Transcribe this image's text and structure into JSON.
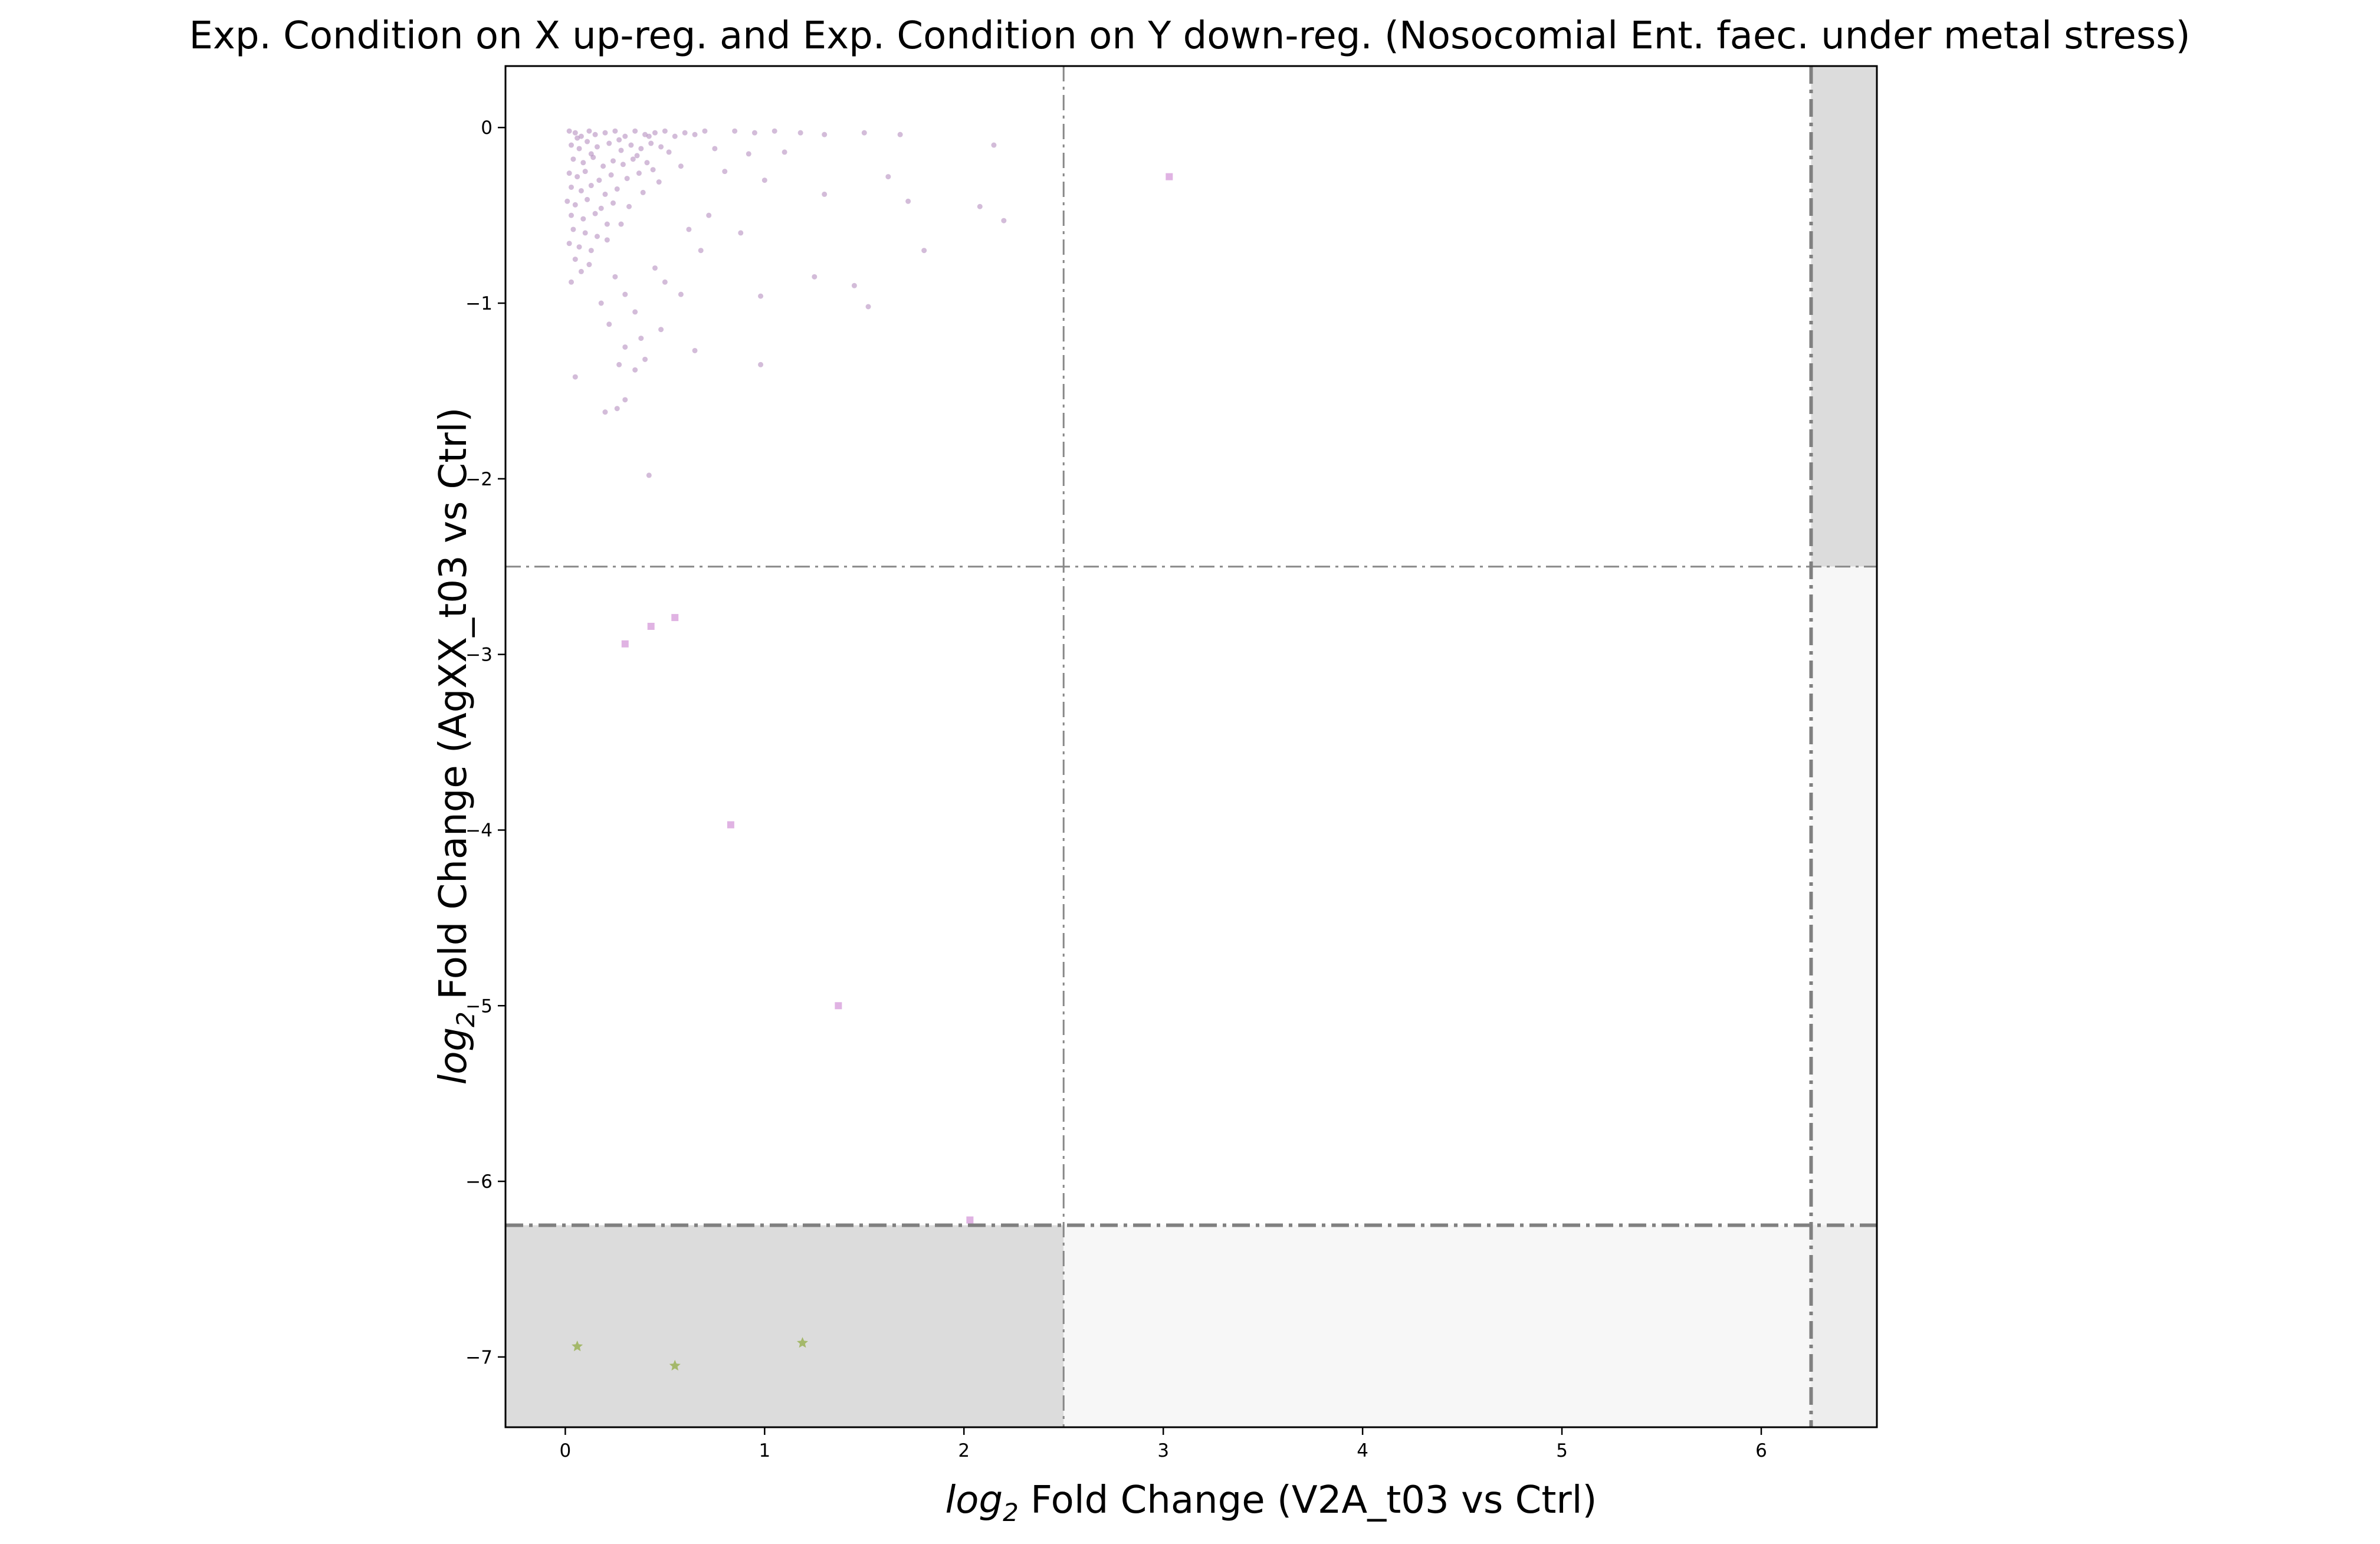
{
  "chart_data": {
    "type": "scatter",
    "title": "Exp. Condition on X up-reg. and Exp. Condition on Y down-reg. (Nosocomial Ent. faec. under metal stress)",
    "xlabel": {
      "prefix": "log",
      "sub": "2",
      "rest": " Fold Change (V2A_t03 vs Ctrl)"
    },
    "ylabel": {
      "prefix": "log",
      "sub": "2",
      "rest": " Fold Change (AgXX_t03 vs Ctrl)"
    },
    "xlim": [
      -0.3,
      6.58
    ],
    "ylim": [
      -7.4,
      0.35
    ],
    "xticks": [
      0,
      1,
      2,
      3,
      4,
      5,
      6
    ],
    "yticks": [
      0,
      -1,
      -2,
      -3,
      -4,
      -5,
      -6,
      -7
    ],
    "xtick_labels": [
      "0",
      "1",
      "2",
      "3",
      "4",
      "5",
      "6"
    ],
    "ytick_labels": [
      "0",
      "−1",
      "−2",
      "−3",
      "−4",
      "−5",
      "−6",
      "−7"
    ],
    "grid": false,
    "thresholds": {
      "x_inner": 2.5,
      "x_outer": 6.25,
      "y_inner": -2.5,
      "y_outer": -6.25
    },
    "shaded_regions": [
      {
        "x": [
          -0.3,
          2.5
        ],
        "y": [
          -7.4,
          -6.25
        ],
        "color": "#dcdcdc"
      },
      {
        "x": [
          6.25,
          6.58
        ],
        "y": [
          -2.5,
          0.35
        ],
        "color": "#dcdcdc"
      },
      {
        "x": [
          6.25,
          6.58
        ],
        "y": [
          -7.4,
          -6.25
        ],
        "color": "#ededed"
      },
      {
        "x": [
          2.5,
          6.25
        ],
        "y": [
          -7.4,
          -6.25
        ],
        "color": "#f7f7f7"
      },
      {
        "x": [
          6.25,
          6.58
        ],
        "y": [
          -6.25,
          -2.5
        ],
        "color": "#f7f7f7"
      }
    ],
    "series": [
      {
        "marker": "dot",
        "color": "#b58fc0",
        "points": [
          [
            0.02,
            -0.02
          ],
          [
            0.05,
            -0.03
          ],
          [
            0.08,
            -0.05
          ],
          [
            0.12,
            -0.02
          ],
          [
            0.15,
            -0.04
          ],
          [
            0.2,
            -0.03
          ],
          [
            0.25,
            -0.02
          ],
          [
            0.3,
            -0.05
          ],
          [
            0.35,
            -0.02
          ],
          [
            0.4,
            -0.04
          ],
          [
            0.45,
            -0.03
          ],
          [
            0.5,
            -0.02
          ],
          [
            0.55,
            -0.05
          ],
          [
            0.6,
            -0.03
          ],
          [
            0.65,
            -0.04
          ],
          [
            0.7,
            -0.02
          ],
          [
            0.03,
            -0.1
          ],
          [
            0.07,
            -0.12
          ],
          [
            0.11,
            -0.08
          ],
          [
            0.16,
            -0.11
          ],
          [
            0.22,
            -0.09
          ],
          [
            0.28,
            -0.13
          ],
          [
            0.33,
            -0.1
          ],
          [
            0.38,
            -0.12
          ],
          [
            0.43,
            -0.09
          ],
          [
            0.48,
            -0.11
          ],
          [
            0.04,
            -0.18
          ],
          [
            0.09,
            -0.2
          ],
          [
            0.14,
            -0.17
          ],
          [
            0.19,
            -0.22
          ],
          [
            0.24,
            -0.19
          ],
          [
            0.29,
            -0.21
          ],
          [
            0.34,
            -0.18
          ],
          [
            0.41,
            -0.2
          ],
          [
            0.02,
            -0.26
          ],
          [
            0.06,
            -0.28
          ],
          [
            0.1,
            -0.25
          ],
          [
            0.17,
            -0.3
          ],
          [
            0.23,
            -0.27
          ],
          [
            0.31,
            -0.29
          ],
          [
            0.37,
            -0.26
          ],
          [
            0.03,
            -0.34
          ],
          [
            0.08,
            -0.36
          ],
          [
            0.13,
            -0.33
          ],
          [
            0.2,
            -0.38
          ],
          [
            0.26,
            -0.35
          ],
          [
            0.01,
            -0.42
          ],
          [
            0.05,
            -0.44
          ],
          [
            0.11,
            -0.41
          ],
          [
            0.18,
            -0.46
          ],
          [
            0.24,
            -0.43
          ],
          [
            0.03,
            -0.5
          ],
          [
            0.09,
            -0.52
          ],
          [
            0.15,
            -0.49
          ],
          [
            0.21,
            -0.55
          ],
          [
            0.04,
            -0.58
          ],
          [
            0.1,
            -0.6
          ],
          [
            0.16,
            -0.62
          ],
          [
            0.02,
            -0.66
          ],
          [
            0.07,
            -0.68
          ],
          [
            0.13,
            -0.7
          ],
          [
            0.05,
            -0.75
          ],
          [
            0.12,
            -0.78
          ],
          [
            0.03,
            -0.88
          ],
          [
            0.08,
            -0.82
          ],
          [
            0.06,
            -0.06
          ],
          [
            0.13,
            -0.15
          ],
          [
            0.27,
            -0.07
          ],
          [
            0.36,
            -0.16
          ],
          [
            0.44,
            -0.24
          ],
          [
            0.52,
            -0.14
          ],
          [
            0.58,
            -0.22
          ],
          [
            0.47,
            -0.31
          ],
          [
            0.39,
            -0.37
          ],
          [
            0.32,
            -0.45
          ],
          [
            0.21,
            -0.64
          ],
          [
            0.28,
            -0.55
          ],
          [
            0.85,
            -0.02
          ],
          [
            0.95,
            -0.03
          ],
          [
            1.05,
            -0.02
          ],
          [
            1.18,
            -0.03
          ],
          [
            1.3,
            -0.04
          ],
          [
            1.5,
            -0.03
          ],
          [
            1.68,
            -0.04
          ],
          [
            2.15,
            -0.1
          ],
          [
            0.75,
            -0.12
          ],
          [
            0.92,
            -0.15
          ],
          [
            1.1,
            -0.14
          ],
          [
            0.8,
            -0.25
          ],
          [
            1.0,
            -0.3
          ],
          [
            1.3,
            -0.38
          ],
          [
            1.62,
            -0.28
          ],
          [
            1.72,
            -0.42
          ],
          [
            2.08,
            -0.45
          ],
          [
            2.2,
            -0.53
          ],
          [
            0.72,
            -0.5
          ],
          [
            0.88,
            -0.6
          ],
          [
            0.62,
            -0.58
          ],
          [
            0.68,
            -0.7
          ],
          [
            1.25,
            -0.85
          ],
          [
            1.45,
            -0.9
          ],
          [
            1.8,
            -0.7
          ],
          [
            1.52,
            -1.02
          ],
          [
            0.98,
            -0.96
          ],
          [
            0.45,
            -0.8
          ],
          [
            0.5,
            -0.88
          ],
          [
            0.25,
            -0.85
          ],
          [
            0.3,
            -0.95
          ],
          [
            0.18,
            -1.0
          ],
          [
            0.22,
            -1.12
          ],
          [
            0.35,
            -1.05
          ],
          [
            0.48,
            -1.15
          ],
          [
            0.38,
            -1.2
          ],
          [
            0.3,
            -1.25
          ],
          [
            0.65,
            -1.27
          ],
          [
            0.4,
            -1.32
          ],
          [
            0.27,
            -1.35
          ],
          [
            0.35,
            -1.38
          ],
          [
            0.05,
            -1.42
          ],
          [
            0.98,
            -1.35
          ],
          [
            0.2,
            -1.62
          ],
          [
            0.26,
            -1.6
          ],
          [
            0.3,
            -1.55
          ],
          [
            0.42,
            -1.98
          ],
          [
            0.58,
            -0.95
          ],
          [
            0.42,
            -0.05
          ]
        ]
      },
      {
        "marker": "square",
        "color": "#e0b3e3",
        "points": [
          [
            3.03,
            -0.28
          ],
          [
            0.3,
            -2.94
          ],
          [
            0.43,
            -2.84
          ],
          [
            0.55,
            -2.79
          ],
          [
            0.83,
            -3.97
          ],
          [
            1.37,
            -5.0
          ],
          [
            2.03,
            -6.22
          ]
        ]
      },
      {
        "marker": "star",
        "color": "#a4b86a",
        "points": [
          [
            0.06,
            -6.94
          ],
          [
            0.55,
            -7.05
          ],
          [
            1.19,
            -6.92
          ]
        ]
      }
    ]
  }
}
